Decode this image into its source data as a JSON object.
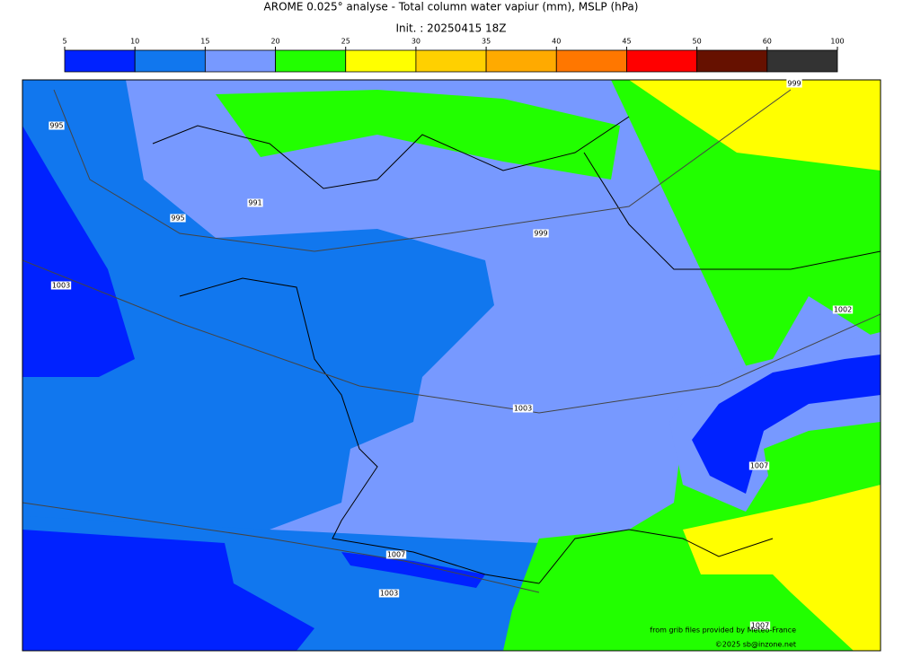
{
  "header": {
    "title": "AROME 0.025° analyse - Total column water vapiur (mm), MSLP (hPa)",
    "subtitle": "Init. : 20250415 18Z"
  },
  "colorbar": {
    "ticks": [
      5,
      10,
      15,
      20,
      25,
      30,
      35,
      40,
      45,
      50,
      60,
      100
    ],
    "colors": [
      "#0022ff",
      "#1177ee",
      "#7799ff",
      "#22ff00",
      "#ffff00",
      "#ffd000",
      "#ffaa00",
      "#ff7700",
      "#ff0000",
      "#661100",
      "#333333"
    ]
  },
  "isobar_labels": [
    "995",
    "995",
    "991",
    "999",
    "999",
    "1003",
    "1002",
    "1003",
    "1007",
    "1007",
    "1003",
    "1007"
  ],
  "credits": {
    "source": "from grib files provided by Meteo-France",
    "copyright": "©2025 sb@inzone.net"
  }
}
